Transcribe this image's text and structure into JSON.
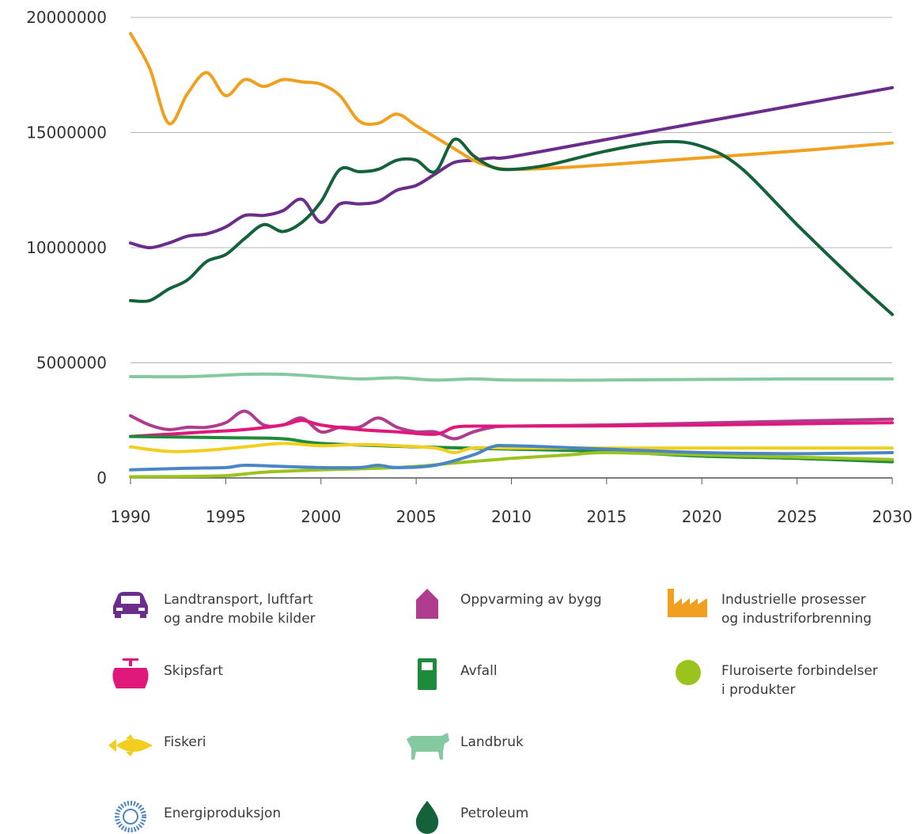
{
  "chart_data": {
    "type": "line",
    "xlabel": "",
    "ylabel": "",
    "xlim": [
      1990,
      2030
    ],
    "ylim": [
      0,
      20000000
    ],
    "grid": true,
    "x_ticks": [
      "1990",
      "1995",
      "2000",
      "2005",
      "2010",
      "2015",
      "2020",
      "2025",
      "2030"
    ],
    "y_ticks": [
      "0",
      "5000000",
      "10000000",
      "15000000",
      "20000000"
    ],
    "legend_position": "bottom",
    "series": [
      {
        "name": "Landtransport, luftfart\nog andre mobile kilder",
        "color": "#6b2d8c",
        "icon": "car-icon",
        "points": [
          [
            1990,
            10200000
          ],
          [
            1991,
            10000000
          ],
          [
            1992,
            10200000
          ],
          [
            1993,
            10500000
          ],
          [
            1994,
            10600000
          ],
          [
            1995,
            10900000
          ],
          [
            1996,
            11400000
          ],
          [
            1997,
            11400000
          ],
          [
            1998,
            11600000
          ],
          [
            1999,
            12100000
          ],
          [
            2000,
            11100000
          ],
          [
            2001,
            11900000
          ],
          [
            2002,
            11900000
          ],
          [
            2003,
            12000000
          ],
          [
            2004,
            12500000
          ],
          [
            2005,
            12700000
          ],
          [
            2006,
            13200000
          ],
          [
            2007,
            13700000
          ],
          [
            2008,
            13800000
          ],
          [
            2009,
            13900000
          ],
          [
            2010,
            13950000
          ],
          [
            2015,
            14700000
          ],
          [
            2020,
            15450000
          ],
          [
            2025,
            16200000
          ],
          [
            2030,
            16950000
          ]
        ]
      },
      {
        "name": "Oppvarming av bygg",
        "color": "#b03c8f",
        "icon": "house-icon",
        "points": [
          [
            1990,
            2700000
          ],
          [
            1991,
            2300000
          ],
          [
            1992,
            2100000
          ],
          [
            1993,
            2200000
          ],
          [
            1994,
            2200000
          ],
          [
            1995,
            2400000
          ],
          [
            1996,
            2900000
          ],
          [
            1997,
            2300000
          ],
          [
            1998,
            2300000
          ],
          [
            1999,
            2600000
          ],
          [
            2000,
            2000000
          ],
          [
            2001,
            2200000
          ],
          [
            2002,
            2200000
          ],
          [
            2003,
            2600000
          ],
          [
            2004,
            2200000
          ],
          [
            2005,
            2000000
          ],
          [
            2006,
            2000000
          ],
          [
            2007,
            1700000
          ],
          [
            2008,
            2000000
          ],
          [
            2009,
            2200000
          ],
          [
            2010,
            2250000
          ],
          [
            2015,
            2300000
          ],
          [
            2020,
            2380000
          ],
          [
            2025,
            2470000
          ],
          [
            2030,
            2550000
          ]
        ]
      },
      {
        "name": "Industrielle prosesser\nog industriforbrenning",
        "color": "#f0a01e",
        "icon": "factory-icon",
        "points": [
          [
            1990,
            19300000
          ],
          [
            1991,
            17800000
          ],
          [
            1992,
            15400000
          ],
          [
            1993,
            16700000
          ],
          [
            1994,
            17600000
          ],
          [
            1995,
            16600000
          ],
          [
            1996,
            17300000
          ],
          [
            1997,
            17000000
          ],
          [
            1998,
            17300000
          ],
          [
            1999,
            17200000
          ],
          [
            2000,
            17100000
          ],
          [
            2001,
            16600000
          ],
          [
            2002,
            15500000
          ],
          [
            2003,
            15400000
          ],
          [
            2004,
            15800000
          ],
          [
            2005,
            15300000
          ],
          [
            2006,
            14800000
          ],
          [
            2007,
            14300000
          ],
          [
            2008,
            13800000
          ],
          [
            2009,
            13500000
          ],
          [
            2010,
            13400000
          ],
          [
            2012,
            13450000
          ],
          [
            2015,
            13600000
          ],
          [
            2020,
            13900000
          ],
          [
            2025,
            14200000
          ],
          [
            2030,
            14550000
          ]
        ]
      },
      {
        "name": "Skipsfart",
        "color": "#e0187c",
        "icon": "ship-icon",
        "points": [
          [
            1990,
            1800000
          ],
          [
            1992,
            1900000
          ],
          [
            1994,
            2000000
          ],
          [
            1996,
            2100000
          ],
          [
            1998,
            2300000
          ],
          [
            1999,
            2500000
          ],
          [
            2000,
            2300000
          ],
          [
            2002,
            2100000
          ],
          [
            2004,
            2000000
          ],
          [
            2006,
            1900000
          ],
          [
            2007,
            2200000
          ],
          [
            2008,
            2250000
          ],
          [
            2010,
            2250000
          ],
          [
            2015,
            2260000
          ],
          [
            2020,
            2300000
          ],
          [
            2025,
            2350000
          ],
          [
            2030,
            2400000
          ]
        ]
      },
      {
        "name": "Avfall",
        "color": "#1e8a3c",
        "icon": "bin-icon",
        "points": [
          [
            1990,
            1800000
          ],
          [
            1995,
            1750000
          ],
          [
            1998,
            1700000
          ],
          [
            2000,
            1500000
          ],
          [
            2005,
            1350000
          ],
          [
            2010,
            1250000
          ],
          [
            2015,
            1150000
          ],
          [
            2020,
            950000
          ],
          [
            2025,
            850000
          ],
          [
            2030,
            700000
          ]
        ]
      },
      {
        "name": "Fluroiserte forbindelser\ni produkter",
        "color": "#9bc31e",
        "icon": "dot-icon",
        "points": [
          [
            1990,
            50000
          ],
          [
            1992,
            60000
          ],
          [
            1995,
            100000
          ],
          [
            1997,
            250000
          ],
          [
            2000,
            350000
          ],
          [
            2003,
            420000
          ],
          [
            2005,
            500000
          ],
          [
            2007,
            650000
          ],
          [
            2010,
            850000
          ],
          [
            2013,
            1000000
          ],
          [
            2015,
            1100000
          ],
          [
            2020,
            1000000
          ],
          [
            2025,
            900000
          ],
          [
            2030,
            800000
          ]
        ]
      },
      {
        "name": "Fiskeri",
        "color": "#f2cf1e",
        "icon": "fish-icon",
        "points": [
          [
            1990,
            1350000
          ],
          [
            1992,
            1150000
          ],
          [
            1994,
            1200000
          ],
          [
            1996,
            1350000
          ],
          [
            1998,
            1500000
          ],
          [
            2000,
            1400000
          ],
          [
            2002,
            1450000
          ],
          [
            2004,
            1400000
          ],
          [
            2006,
            1300000
          ],
          [
            2007,
            1100000
          ],
          [
            2008,
            1300000
          ],
          [
            2010,
            1300000
          ],
          [
            2015,
            1300000
          ],
          [
            2020,
            1300000
          ],
          [
            2025,
            1300000
          ],
          [
            2030,
            1300000
          ]
        ]
      },
      {
        "name": "Landbruk",
        "color": "#85c9a0",
        "icon": "cow-icon",
        "points": [
          [
            1990,
            4400000
          ],
          [
            1993,
            4400000
          ],
          [
            1996,
            4500000
          ],
          [
            1998,
            4500000
          ],
          [
            2000,
            4400000
          ],
          [
            2002,
            4300000
          ],
          [
            2004,
            4350000
          ],
          [
            2006,
            4250000
          ],
          [
            2008,
            4300000
          ],
          [
            2010,
            4250000
          ],
          [
            2015,
            4250000
          ],
          [
            2020,
            4280000
          ],
          [
            2025,
            4300000
          ],
          [
            2030,
            4300000
          ]
        ]
      },
      {
        "name": "Energiproduksjon",
        "color": "#4a86c5",
        "icon": "sun-icon",
        "points": [
          [
            1990,
            350000
          ],
          [
            1993,
            420000
          ],
          [
            1995,
            450000
          ],
          [
            1996,
            550000
          ],
          [
            1998,
            500000
          ],
          [
            2000,
            450000
          ],
          [
            2002,
            450000
          ],
          [
            2003,
            550000
          ],
          [
            2004,
            450000
          ],
          [
            2006,
            550000
          ],
          [
            2008,
            1000000
          ],
          [
            2009,
            1350000
          ],
          [
            2010,
            1400000
          ],
          [
            2015,
            1250000
          ],
          [
            2020,
            1100000
          ],
          [
            2025,
            1050000
          ],
          [
            2030,
            1100000
          ]
        ]
      },
      {
        "name": "Petroleum",
        "color": "#14623a",
        "icon": "drop-icon",
        "points": [
          [
            1990,
            7700000
          ],
          [
            1991,
            7700000
          ],
          [
            1992,
            8200000
          ],
          [
            1993,
            8600000
          ],
          [
            1994,
            9400000
          ],
          [
            1995,
            9700000
          ],
          [
            1996,
            10400000
          ],
          [
            1997,
            11000000
          ],
          [
            1998,
            10700000
          ],
          [
            1999,
            11100000
          ],
          [
            2000,
            12000000
          ],
          [
            2001,
            13400000
          ],
          [
            2002,
            13300000
          ],
          [
            2003,
            13400000
          ],
          [
            2004,
            13800000
          ],
          [
            2005,
            13800000
          ],
          [
            2006,
            13300000
          ],
          [
            2007,
            14700000
          ],
          [
            2008,
            14000000
          ],
          [
            2009,
            13500000
          ],
          [
            2010,
            13400000
          ],
          [
            2012,
            13600000
          ],
          [
            2015,
            14200000
          ],
          [
            2018,
            14600000
          ],
          [
            2020,
            14400000
          ],
          [
            2022,
            13500000
          ],
          [
            2025,
            11000000
          ],
          [
            2028,
            8600000
          ],
          [
            2030,
            7100000
          ]
        ]
      }
    ]
  },
  "legend": [
    {
      "label": "Landtransport, luftfart\nog andre mobile kilder",
      "icon": "car-icon",
      "color": "#6b2d8c"
    },
    {
      "label": "Oppvarming av bygg",
      "icon": "house-icon",
      "color": "#b03c8f"
    },
    {
      "label": "Industrielle prosesser\nog industriforbrenning",
      "icon": "factory-icon",
      "color": "#f0a01e"
    },
    {
      "label": "Skipsfart",
      "icon": "ship-icon",
      "color": "#e0187c"
    },
    {
      "label": "Avfall",
      "icon": "bin-icon",
      "color": "#1e8a3c"
    },
    {
      "label": "Fluroiserte forbindelser\ni produkter",
      "icon": "dot-icon",
      "color": "#9bc31e"
    },
    {
      "label": "Fiskeri",
      "icon": "fish-icon",
      "color": "#f2cf1e"
    },
    {
      "label": "Landbruk",
      "icon": "cow-icon",
      "color": "#85c9a0"
    },
    {
      "label": "Energiproduksjon",
      "icon": "sun-icon",
      "color": "#4a86c5"
    },
    {
      "label": "Petroleum",
      "icon": "drop-icon",
      "color": "#14623a"
    }
  ]
}
